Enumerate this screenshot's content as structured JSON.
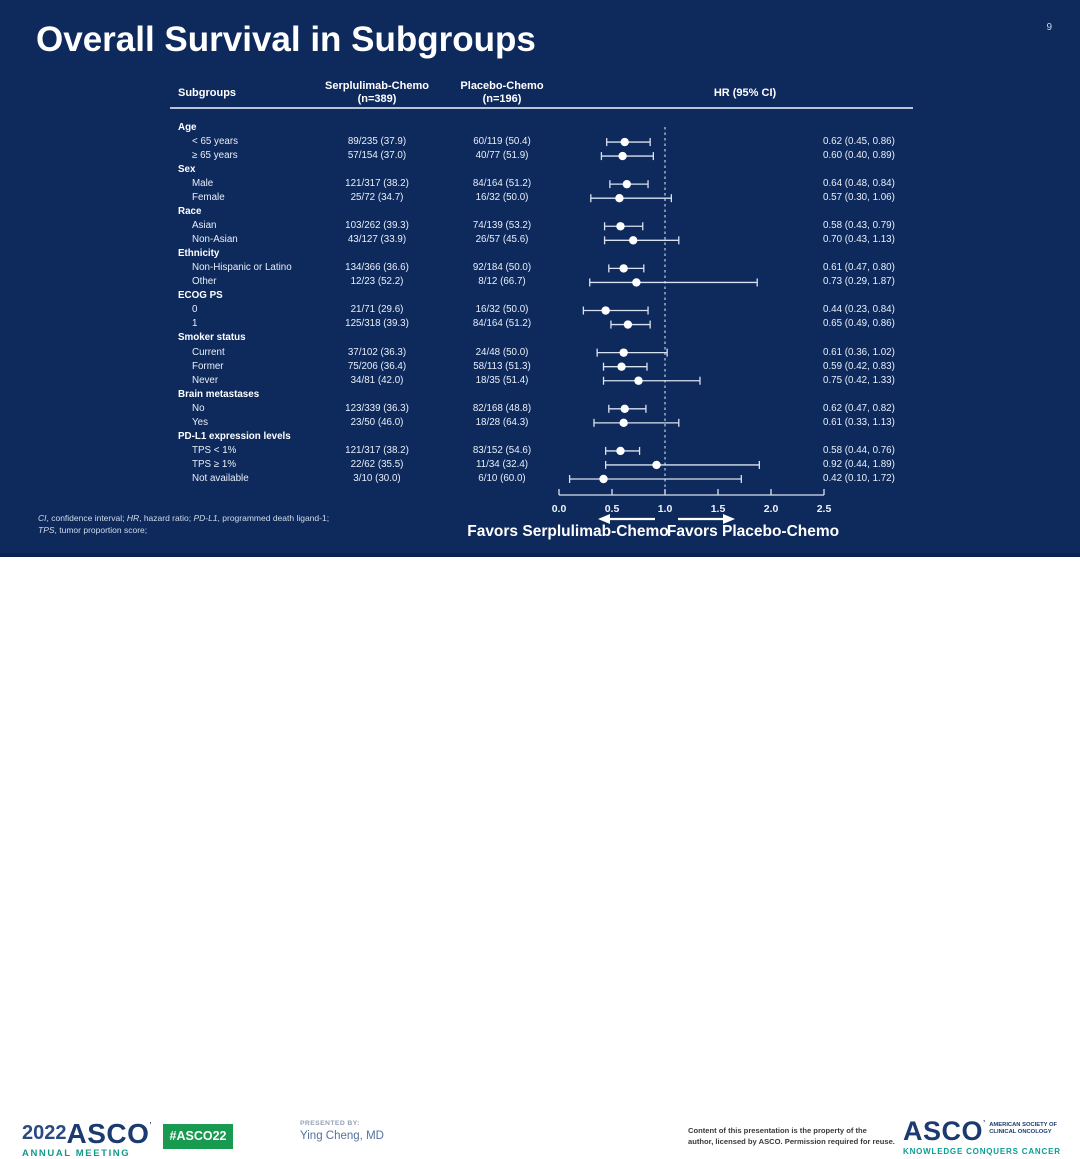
{
  "slide": {
    "page_number": "9",
    "title": "Overall Survival in Subgroups",
    "colors": {
      "slide_background": "#0e2a5c",
      "text": "#ffffff",
      "badge_green": "#189a50",
      "asco_navy": "#1b3a70",
      "asco_teal": "#12998b"
    },
    "table": {
      "header_subgroups": "Subgroups",
      "header_serp_l1": "Serplulimab-Chemo",
      "header_serp_l2": "(n=389)",
      "header_placebo_l1": "Placebo-Chemo",
      "header_placebo_l2": "(n=196)",
      "header_hr": "HR (95% CI)"
    },
    "rows": [
      {
        "type": "section",
        "label": "Age"
      },
      {
        "type": "data",
        "label": "< 65 years",
        "serp": "89/235 (37.9)",
        "placebo": "60/119 (50.4)",
        "hr_text": "0.62 (0.45, 0.86)"
      },
      {
        "type": "data",
        "label": "≥ 65 years",
        "serp": "57/154 (37.0)",
        "placebo": "40/77 (51.9)",
        "hr_text": "0.60 (0.40, 0.89)"
      },
      {
        "type": "section",
        "label": "Sex"
      },
      {
        "type": "data",
        "label": "Male",
        "serp": "121/317 (38.2)",
        "placebo": "84/164 (51.2)",
        "hr_text": "0.64 (0.48, 0.84)"
      },
      {
        "type": "data",
        "label": "Female",
        "serp": "25/72 (34.7)",
        "placebo": "16/32 (50.0)",
        "hr_text": "0.57 (0.30, 1.06)"
      },
      {
        "type": "section",
        "label": "Race"
      },
      {
        "type": "data",
        "label": "Asian",
        "serp": "103/262 (39.3)",
        "placebo": "74/139 (53.2)",
        "hr_text": "0.58 (0.43, 0.79)"
      },
      {
        "type": "data",
        "label": "Non-Asian",
        "serp": "43/127 (33.9)",
        "placebo": "26/57 (45.6)",
        "hr_text": "0.70 (0.43, 1.13)"
      },
      {
        "type": "section",
        "label": "Ethnicity"
      },
      {
        "type": "data",
        "label": "Non-Hispanic or Latino",
        "serp": "134/366 (36.6)",
        "placebo": "92/184 (50.0)",
        "hr_text": "0.61 (0.47, 0.80)"
      },
      {
        "type": "data",
        "label": "Other",
        "serp": "12/23 (52.2)",
        "placebo": "8/12 (66.7)",
        "hr_text": "0.73 (0.29, 1.87)"
      },
      {
        "type": "section",
        "label": "ECOG PS"
      },
      {
        "type": "data",
        "label": "0",
        "serp": "21/71 (29.6)",
        "placebo": "16/32 (50.0)",
        "hr_text": "0.44 (0.23, 0.84)"
      },
      {
        "type": "data",
        "label": "1",
        "serp": "125/318 (39.3)",
        "placebo": "84/164 (51.2)",
        "hr_text": "0.65 (0.49, 0.86)"
      },
      {
        "type": "section",
        "label": "Smoker status"
      },
      {
        "type": "data",
        "label": "Current",
        "serp": "37/102 (36.3)",
        "placebo": "24/48 (50.0)",
        "hr_text": "0.61 (0.36, 1.02)"
      },
      {
        "type": "data",
        "label": "Former",
        "serp": "75/206 (36.4)",
        "placebo": "58/113 (51.3)",
        "hr_text": "0.59 (0.42, 0.83)"
      },
      {
        "type": "data",
        "label": "Never",
        "serp": "34/81 (42.0)",
        "placebo": "18/35 (51.4)",
        "hr_text": "0.75 (0.42, 1.33)"
      },
      {
        "type": "section",
        "label": "Brain metastases"
      },
      {
        "type": "data",
        "label": "No",
        "serp": "123/339 (36.3)",
        "placebo": "82/168 (48.8)",
        "hr_text": "0.62 (0.47, 0.82)"
      },
      {
        "type": "data",
        "label": "Yes",
        "serp": "23/50 (46.0)",
        "placebo": "18/28 (64.3)",
        "hr_text": "0.61 (0.33, 1.13)"
      },
      {
        "type": "section",
        "label": "PD-L1 expression levels"
      },
      {
        "type": "data",
        "label": "TPS < 1%",
        "serp": "121/317 (38.2)",
        "placebo": "83/152 (54.6)",
        "hr_text": "0.58 (0.44, 0.76)"
      },
      {
        "type": "data",
        "label": "TPS ≥ 1%",
        "serp": "22/62 (35.5)",
        "placebo": "11/34 (32.4)",
        "hr_text": "0.92 (0.44, 1.89)"
      },
      {
        "type": "data",
        "label": "Not available",
        "serp": "3/10 (30.0)",
        "placebo": "6/10 (60.0)",
        "hr_text": "0.42 (0.10, 1.72)"
      }
    ],
    "axis": {
      "tick_labels": [
        "0.0",
        "0.5",
        "1.0",
        "1.5",
        "2.0",
        "2.5"
      ]
    },
    "favors_left": "Favors Serplulimab-Chemo",
    "favors_right": "Favors Placebo-Chemo",
    "footnote": {
      "line1": [
        {
          "t": "CI",
          "i": 1
        },
        {
          "t": ", confidence interval; "
        },
        {
          "t": "HR",
          "i": 1
        },
        {
          "t": ", hazard ratio; "
        },
        {
          "t": "PD-L1",
          "i": 1
        },
        {
          "t": ", programmed death ligand-1;"
        }
      ],
      "line2": [
        {
          "t": "TPS",
          "i": 1
        },
        {
          "t": ", tumor proportion score;"
        }
      ]
    },
    "footer": {
      "logo_year": "2022",
      "logo_asco": "ASCO",
      "logo_annual": "ANNUAL MEETING",
      "badge": "#ASCO22",
      "presented_by_label": "PRESENTED BY:",
      "presenter": "Ying Cheng, MD",
      "copyright_l1": "Content of this presentation is the property of the",
      "copyright_l2": "author, licensed by ASCO. Permission required for reuse.",
      "asco_right": "ASCO",
      "society_l1": "AMERICAN SOCIETY OF",
      "society_l2": "CLINICAL ONCOLOGY",
      "tagline": "KNOWLEDGE CONQUERS CANCER"
    }
  },
  "chart_data": {
    "type": "scatter",
    "subtype": "forest_plot",
    "title": "Overall Survival in Subgroups",
    "xlabel": "HR (95% CI)",
    "xlim": [
      0.0,
      2.5
    ],
    "x_ticks": [
      0.0,
      0.5,
      1.0,
      1.5,
      2.0,
      2.5
    ],
    "reference_line_x": 1.0,
    "grid": false,
    "points": [
      {
        "section": "Age",
        "subgroup": "< 65 years",
        "hr": 0.62,
        "ci": [
          0.45,
          0.86
        ]
      },
      {
        "section": "Age",
        "subgroup": "≥ 65 years",
        "hr": 0.6,
        "ci": [
          0.4,
          0.89
        ]
      },
      {
        "section": "Sex",
        "subgroup": "Male",
        "hr": 0.64,
        "ci": [
          0.48,
          0.84
        ]
      },
      {
        "section": "Sex",
        "subgroup": "Female",
        "hr": 0.57,
        "ci": [
          0.3,
          1.06
        ]
      },
      {
        "section": "Race",
        "subgroup": "Asian",
        "hr": 0.58,
        "ci": [
          0.43,
          0.79
        ]
      },
      {
        "section": "Race",
        "subgroup": "Non-Asian",
        "hr": 0.7,
        "ci": [
          0.43,
          1.13
        ]
      },
      {
        "section": "Ethnicity",
        "subgroup": "Non-Hispanic or Latino",
        "hr": 0.61,
        "ci": [
          0.47,
          0.8
        ]
      },
      {
        "section": "Ethnicity",
        "subgroup": "Other",
        "hr": 0.73,
        "ci": [
          0.29,
          1.87
        ]
      },
      {
        "section": "ECOG PS",
        "subgroup": "0",
        "hr": 0.44,
        "ci": [
          0.23,
          0.84
        ]
      },
      {
        "section": "ECOG PS",
        "subgroup": "1",
        "hr": 0.65,
        "ci": [
          0.49,
          0.86
        ]
      },
      {
        "section": "Smoker status",
        "subgroup": "Current",
        "hr": 0.61,
        "ci": [
          0.36,
          1.02
        ]
      },
      {
        "section": "Smoker status",
        "subgroup": "Former",
        "hr": 0.59,
        "ci": [
          0.42,
          0.83
        ]
      },
      {
        "section": "Smoker status",
        "subgroup": "Never",
        "hr": 0.75,
        "ci": [
          0.42,
          1.33
        ]
      },
      {
        "section": "Brain metastases",
        "subgroup": "No",
        "hr": 0.62,
        "ci": [
          0.47,
          0.82
        ]
      },
      {
        "section": "Brain metastases",
        "subgroup": "Yes",
        "hr": 0.61,
        "ci": [
          0.33,
          1.13
        ]
      },
      {
        "section": "PD-L1 expression levels",
        "subgroup": "TPS < 1%",
        "hr": 0.58,
        "ci": [
          0.44,
          0.76
        ]
      },
      {
        "section": "PD-L1 expression levels",
        "subgroup": "TPS ≥ 1%",
        "hr": 0.92,
        "ci": [
          0.44,
          1.89
        ]
      },
      {
        "section": "PD-L1 expression levels",
        "subgroup": "Not available",
        "hr": 0.42,
        "ci": [
          0.1,
          1.72
        ]
      }
    ]
  }
}
